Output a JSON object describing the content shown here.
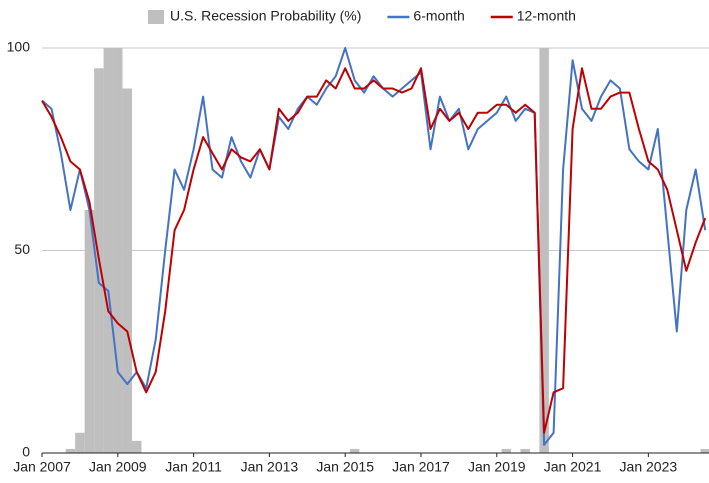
{
  "chart_data": {
    "type": "line",
    "x": [
      2007,
      2007.25,
      2007.5,
      2007.75,
      2008,
      2008.25,
      2008.5,
      2008.75,
      2009,
      2009.25,
      2009.5,
      2009.75,
      2010,
      2010.25,
      2010.5,
      2010.75,
      2011,
      2011.25,
      2011.5,
      2011.75,
      2012,
      2012.25,
      2012.5,
      2012.75,
      2013,
      2013.25,
      2013.5,
      2013.75,
      2014,
      2014.25,
      2014.5,
      2014.75,
      2015,
      2015.25,
      2015.5,
      2015.75,
      2016,
      2016.25,
      2016.5,
      2016.75,
      2017,
      2017.25,
      2017.5,
      2017.75,
      2018,
      2018.25,
      2018.5,
      2018.75,
      2019,
      2019.25,
      2019.5,
      2019.75,
      2020,
      2020.25,
      2020.5,
      2020.75,
      2021,
      2021.25,
      2021.5,
      2021.75,
      2022,
      2022.25,
      2022.5,
      2022.75,
      2023,
      2023.25,
      2023.5,
      2023.75,
      2024,
      2024.25,
      2024.5
    ],
    "series": [
      {
        "name": "U.S. Recession Probability (%)",
        "color": "#bfbfbf",
        "kind": "bar",
        "values": [
          0,
          0,
          0,
          1,
          5,
          60,
          95,
          100,
          100,
          90,
          3,
          0,
          0,
          0,
          0,
          0,
          0,
          0,
          0,
          0,
          0,
          0,
          0,
          0,
          0,
          0,
          0,
          0,
          0,
          0,
          0,
          0,
          0,
          1,
          0,
          0,
          0,
          0,
          0,
          0,
          0,
          0,
          0,
          0,
          0,
          0,
          0,
          0,
          0,
          1,
          0,
          1,
          0,
          100,
          0,
          0,
          0,
          0,
          0,
          0,
          0,
          0,
          0,
          0,
          0,
          0,
          0,
          0,
          0,
          0,
          1
        ]
      },
      {
        "name": "6-month",
        "color": "#4472c4",
        "values": [
          87,
          85,
          74,
          60,
          70,
          60,
          42,
          40,
          20,
          17,
          20,
          16,
          28,
          50,
          70,
          65,
          75,
          88,
          70,
          68,
          78,
          72,
          68,
          75,
          70,
          83,
          80,
          85,
          88,
          86,
          90,
          93,
          100,
          92,
          89,
          93,
          90,
          88,
          90,
          92,
          94,
          75,
          88,
          82,
          85,
          75,
          80,
          82,
          84,
          88,
          82,
          85,
          84,
          2,
          5,
          70,
          97,
          85,
          82,
          88,
          92,
          90,
          75,
          72,
          70,
          80,
          55,
          30,
          60,
          70,
          55
        ]
      },
      {
        "name": "12-month",
        "color": "#c00000",
        "values": [
          87,
          83,
          78,
          72,
          70,
          62,
          48,
          35,
          32,
          30,
          20,
          15,
          20,
          35,
          55,
          60,
          70,
          78,
          74,
          70,
          75,
          73,
          72,
          75,
          70,
          85,
          82,
          84,
          88,
          88,
          92,
          90,
          95,
          90,
          90,
          92,
          90,
          90,
          89,
          90,
          95,
          80,
          85,
          82,
          84,
          80,
          84,
          84,
          86,
          86,
          84,
          86,
          84,
          5,
          15,
          16,
          80,
          95,
          85,
          85,
          88,
          89,
          89,
          80,
          72,
          70,
          65,
          55,
          45,
          52,
          58
        ]
      }
    ],
    "xlim": [
      2007,
      2024.6
    ],
    "xticks": [
      {
        "value": 2007,
        "label": "Jan 2007"
      },
      {
        "value": 2009,
        "label": "Jan 2009"
      },
      {
        "value": 2011,
        "label": "Jan 2011"
      },
      {
        "value": 2013,
        "label": "Jan 2013"
      },
      {
        "value": 2015,
        "label": "Jan 2015"
      },
      {
        "value": 2017,
        "label": "Jan 2017"
      },
      {
        "value": 2019,
        "label": "Jan 2019"
      },
      {
        "value": 2021,
        "label": "Jan 2021"
      },
      {
        "value": 2023,
        "label": "Jan 2023"
      }
    ],
    "ylim": [
      0,
      100
    ],
    "yticks": [
      0,
      50,
      100
    ],
    "grid": true,
    "legend": "top"
  }
}
